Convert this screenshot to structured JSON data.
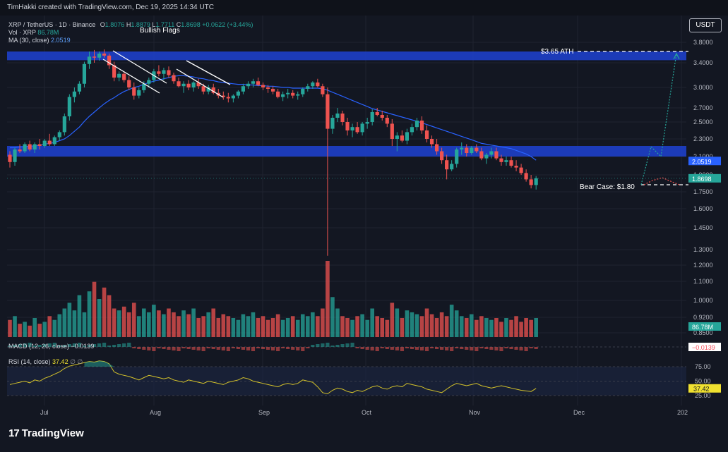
{
  "header": {
    "credit": "TimHakki created with TradingView.com, Dec 19, 2025 14:34 UTC"
  },
  "legend": {
    "symbol": "XRP / TetherUS · 1D · Binance",
    "open_label": "O",
    "open": "1.8076",
    "high_label": "H",
    "high": "1.8879",
    "low_label": "L",
    "low": "1.7711",
    "close_label": "C",
    "close": "1.8698",
    "change": "+0.0622 (+3.44%)",
    "vol_label": "Vol · XRP",
    "vol": "86.78M",
    "ma_label": "MA (30, close)",
    "ma": "2.0519",
    "macd_label": "MACD (12, 26, close)",
    "macd": "−0.0139",
    "rsi_label": "RSI (14, close)",
    "rsi": "37.42",
    "rsi_na": "∅ ∅"
  },
  "currency_button": "USDT",
  "brand": {
    "logo_glyph": "17",
    "name": "TradingView"
  },
  "annotations": {
    "bullish_flags": "Bullish Flags",
    "ath": "$3.65 ATH",
    "bear_case": "Bear Case: $1.80"
  },
  "price_badges": {
    "ma": {
      "value": "2.0519",
      "color": "#2962ff"
    },
    "price": {
      "value": "1.8698",
      "color": "#26a69a"
    },
    "volume": {
      "value": "86.78M",
      "color": "#26a69a"
    },
    "macd": {
      "value": "−0.0139",
      "color": "#f7525f"
    },
    "rsi": {
      "value": "37.42",
      "color": "#f0e130"
    }
  },
  "colors": {
    "up": "#26a69a",
    "down": "#ef5350",
    "ma_line": "#2962ff",
    "zone": "#1e3fc9",
    "rsi_line": "#d4c22a",
    "rsi_band": "#1c2744"
  },
  "chart_data": {
    "type": "candlestick",
    "price_axis_ticks": [
      3.8,
      3.4,
      3.0,
      2.7,
      2.5,
      2.3,
      2.1,
      1.9,
      1.75,
      1.6,
      1.45,
      1.3,
      1.2,
      1.1,
      1.0,
      0.92,
      0.85
    ],
    "rsi_axis_ticks": [
      75.0,
      50.0,
      25.0
    ],
    "time_axis_labels": [
      "Jul",
      "Aug",
      "Sep",
      "Oct",
      "Nov",
      "Dec",
      "202"
    ],
    "resistance_zones": [
      [
        3.45,
        3.62
      ],
      [
        2.1,
        2.22
      ]
    ],
    "levels": {
      "ath": 3.65,
      "bear_case": 1.8
    },
    "candles": [
      [
        2.12,
        2.16,
        1.98,
        2.04
      ],
      [
        2.04,
        2.2,
        2.0,
        2.18
      ],
      [
        2.18,
        2.24,
        2.14,
        2.16
      ],
      [
        2.16,
        2.26,
        2.14,
        2.24
      ],
      [
        2.24,
        2.28,
        2.16,
        2.18
      ],
      [
        2.18,
        2.26,
        2.14,
        2.24
      ],
      [
        2.24,
        2.3,
        2.18,
        2.22
      ],
      [
        2.22,
        2.3,
        2.2,
        2.28
      ],
      [
        2.28,
        2.36,
        2.22,
        2.24
      ],
      [
        2.24,
        2.34,
        2.22,
        2.32
      ],
      [
        2.32,
        2.4,
        2.28,
        2.38
      ],
      [
        2.38,
        2.62,
        2.34,
        2.58
      ],
      [
        2.58,
        2.9,
        2.52,
        2.86
      ],
      [
        2.86,
        3.0,
        2.78,
        2.94
      ],
      [
        2.94,
        3.1,
        2.9,
        3.06
      ],
      [
        3.06,
        3.42,
        3.0,
        3.38
      ],
      [
        3.38,
        3.62,
        3.3,
        3.52
      ],
      [
        3.52,
        3.65,
        3.4,
        3.5
      ],
      [
        3.5,
        3.62,
        3.44,
        3.58
      ],
      [
        3.58,
        3.66,
        3.5,
        3.54
      ],
      [
        3.54,
        3.58,
        3.3,
        3.36
      ],
      [
        3.36,
        3.42,
        3.1,
        3.16
      ],
      [
        3.16,
        3.26,
        3.1,
        3.22
      ],
      [
        3.22,
        3.26,
        3.08,
        3.12
      ],
      [
        3.12,
        3.18,
        2.96,
        3.0
      ],
      [
        3.0,
        3.08,
        2.82,
        2.88
      ],
      [
        2.88,
        3.0,
        2.84,
        2.96
      ],
      [
        2.96,
        3.1,
        2.92,
        3.06
      ],
      [
        3.06,
        3.16,
        3.0,
        3.12
      ],
      [
        3.12,
        3.3,
        3.08,
        3.26
      ],
      [
        3.26,
        3.36,
        3.18,
        3.22
      ],
      [
        3.22,
        3.32,
        3.12,
        3.28
      ],
      [
        3.28,
        3.34,
        3.16,
        3.2
      ],
      [
        3.2,
        3.24,
        3.06,
        3.1
      ],
      [
        3.1,
        3.16,
        3.0,
        3.02
      ],
      [
        3.02,
        3.1,
        2.92,
        3.06
      ],
      [
        3.06,
        3.12,
        2.96,
        3.0
      ],
      [
        3.0,
        3.1,
        2.94,
        3.08
      ],
      [
        3.08,
        3.14,
        2.98,
        3.02
      ],
      [
        3.02,
        3.06,
        2.9,
        2.94
      ],
      [
        2.94,
        3.04,
        2.9,
        3.0
      ],
      [
        3.0,
        3.06,
        2.9,
        2.92
      ],
      [
        2.92,
        2.98,
        2.84,
        2.88
      ],
      [
        2.88,
        2.94,
        2.82,
        2.86
      ],
      [
        2.86,
        2.92,
        2.78,
        2.84
      ],
      [
        2.84,
        2.9,
        2.78,
        2.88
      ],
      [
        2.88,
        2.96,
        2.84,
        2.94
      ],
      [
        2.94,
        3.06,
        2.9,
        3.02
      ],
      [
        3.02,
        3.1,
        2.98,
        3.06
      ],
      [
        3.06,
        3.14,
        3.0,
        3.1
      ],
      [
        3.1,
        3.16,
        3.02,
        3.04
      ],
      [
        3.04,
        3.08,
        2.96,
        3.0
      ],
      [
        3.0,
        3.04,
        2.92,
        2.98
      ],
      [
        2.98,
        3.02,
        2.9,
        2.94
      ],
      [
        2.94,
        2.98,
        2.84,
        2.86
      ],
      [
        2.86,
        2.94,
        2.8,
        2.9
      ],
      [
        2.9,
        2.98,
        2.84,
        2.92
      ],
      [
        2.92,
        2.96,
        2.84,
        2.88
      ],
      [
        2.88,
        2.94,
        2.82,
        2.9
      ],
      [
        2.9,
        3.0,
        2.86,
        2.98
      ],
      [
        2.98,
        3.06,
        2.94,
        3.02
      ],
      [
        3.02,
        3.1,
        2.98,
        3.08
      ],
      [
        3.08,
        3.14,
        3.0,
        3.02
      ],
      [
        3.02,
        3.06,
        2.86,
        2.9
      ],
      [
        2.9,
        3.0,
        1.26,
        2.42
      ],
      [
        2.42,
        2.6,
        2.36,
        2.56
      ],
      [
        2.56,
        2.7,
        2.5,
        2.62
      ],
      [
        2.62,
        2.66,
        2.46,
        2.5
      ],
      [
        2.5,
        2.56,
        2.34,
        2.4
      ],
      [
        2.4,
        2.48,
        2.32,
        2.44
      ],
      [
        2.44,
        2.5,
        2.36,
        2.38
      ],
      [
        2.38,
        2.5,
        2.34,
        2.48
      ],
      [
        2.48,
        2.56,
        2.42,
        2.5
      ],
      [
        2.5,
        2.68,
        2.46,
        2.64
      ],
      [
        2.64,
        2.7,
        2.58,
        2.6
      ],
      [
        2.6,
        2.66,
        2.52,
        2.56
      ],
      [
        2.56,
        2.6,
        2.44,
        2.48
      ],
      [
        2.48,
        2.54,
        2.22,
        2.3
      ],
      [
        2.3,
        2.38,
        2.16,
        2.34
      ],
      [
        2.34,
        2.4,
        2.26,
        2.28
      ],
      [
        2.28,
        2.42,
        2.24,
        2.38
      ],
      [
        2.38,
        2.48,
        2.34,
        2.44
      ],
      [
        2.44,
        2.56,
        2.4,
        2.52
      ],
      [
        2.52,
        2.58,
        2.36,
        2.4
      ],
      [
        2.4,
        2.46,
        2.26,
        2.3
      ],
      [
        2.3,
        2.34,
        2.2,
        2.24
      ],
      [
        2.24,
        2.3,
        2.12,
        2.16
      ],
      [
        2.16,
        2.2,
        2.02,
        2.06
      ],
      [
        2.06,
        2.12,
        1.86,
        1.96
      ],
      [
        1.96,
        2.06,
        1.94,
        2.02
      ],
      [
        2.02,
        2.2,
        1.98,
        2.18
      ],
      [
        2.18,
        2.26,
        2.12,
        2.2
      ],
      [
        2.2,
        2.24,
        2.1,
        2.14
      ],
      [
        2.14,
        2.22,
        2.12,
        2.2
      ],
      [
        2.2,
        2.24,
        2.14,
        2.16
      ],
      [
        2.16,
        2.2,
        2.06,
        2.08
      ],
      [
        2.08,
        2.14,
        2.02,
        2.12
      ],
      [
        2.12,
        2.2,
        2.08,
        2.16
      ],
      [
        2.16,
        2.2,
        2.06,
        2.08
      ],
      [
        2.08,
        2.12,
        2.0,
        2.04
      ],
      [
        2.04,
        2.1,
        2.0,
        2.06
      ],
      [
        2.06,
        2.1,
        1.98,
        2.0
      ],
      [
        2.0,
        2.06,
        1.94,
        1.98
      ],
      [
        1.98,
        2.02,
        1.9,
        1.92
      ],
      [
        1.92,
        1.96,
        1.84,
        1.86
      ],
      [
        1.86,
        1.9,
        1.78,
        1.81
      ],
      [
        1.81,
        1.89,
        1.77,
        1.87
      ]
    ],
    "ma_30": [
      2.2,
      2.2,
      2.21,
      2.21,
      2.22,
      2.22,
      2.23,
      2.24,
      2.25,
      2.26,
      2.28,
      2.3,
      2.34,
      2.39,
      2.44,
      2.51,
      2.58,
      2.64,
      2.7,
      2.76,
      2.81,
      2.85,
      2.9,
      2.94,
      2.97,
      3.0,
      3.02,
      3.05,
      3.08,
      3.1,
      3.12,
      3.14,
      3.16,
      3.18,
      3.19,
      3.19,
      3.18,
      3.17,
      3.15,
      3.14,
      3.12,
      3.11,
      3.09,
      3.08,
      3.07,
      3.06,
      3.05,
      3.05,
      3.04,
      3.04,
      3.03,
      3.03,
      3.02,
      3.02,
      3.01,
      3.0,
      3.0,
      2.99,
      2.99,
      2.99,
      2.99,
      2.99,
      2.99,
      2.98,
      2.96,
      2.93,
      2.9,
      2.87,
      2.84,
      2.81,
      2.78,
      2.75,
      2.72,
      2.69,
      2.67,
      2.65,
      2.63,
      2.61,
      2.59,
      2.57,
      2.55,
      2.53,
      2.51,
      2.49,
      2.47,
      2.45,
      2.43,
      2.41,
      2.39,
      2.37,
      2.35,
      2.33,
      2.31,
      2.29,
      2.27,
      2.25,
      2.24,
      2.23,
      2.22,
      2.21,
      2.2,
      2.19,
      2.17,
      2.15,
      2.13,
      2.1,
      2.06
    ],
    "volume": [
      18,
      22,
      14,
      16,
      12,
      20,
      14,
      16,
      22,
      18,
      24,
      30,
      36,
      28,
      44,
      26,
      48,
      58,
      40,
      52,
      44,
      30,
      28,
      32,
      26,
      36,
      22,
      30,
      26,
      34,
      28,
      24,
      30,
      26,
      22,
      28,
      24,
      30,
      20,
      22,
      26,
      30,
      20,
      24,
      22,
      20,
      18,
      24,
      22,
      26,
      20,
      22,
      18,
      20,
      24,
      18,
      20,
      22,
      18,
      24,
      22,
      26,
      22,
      30,
      80,
      42,
      30,
      22,
      20,
      18,
      22,
      24,
      18,
      30,
      22,
      20,
      18,
      36,
      30,
      20,
      28,
      26,
      24,
      22,
      30,
      24,
      20,
      26,
      22,
      34,
      28,
      22,
      20,
      24,
      18,
      22,
      20,
      18,
      20,
      16,
      20,
      18,
      22,
      16,
      20,
      18,
      20
    ],
    "rsi": [
      44,
      46,
      48,
      50,
      47,
      52,
      50,
      55,
      58,
      62,
      66,
      72,
      76,
      78,
      80,
      82,
      84,
      83,
      85,
      84,
      80,
      66,
      62,
      60,
      58,
      55,
      52,
      56,
      60,
      58,
      56,
      54,
      56,
      52,
      50,
      48,
      52,
      50,
      48,
      46,
      50,
      48,
      46,
      44,
      48,
      50,
      52,
      56,
      54,
      50,
      48,
      46,
      44,
      42,
      40,
      44,
      46,
      44,
      46,
      52,
      50,
      48,
      40,
      30,
      28,
      34,
      38,
      36,
      32,
      30,
      34,
      32,
      36,
      40,
      42,
      38,
      36,
      40,
      42,
      40,
      46,
      44,
      42,
      40,
      36,
      34,
      32,
      30,
      36,
      42,
      46,
      44,
      42,
      44,
      46,
      42,
      40,
      38,
      40,
      42,
      40,
      38,
      36,
      34,
      33,
      32,
      37.4
    ]
  }
}
